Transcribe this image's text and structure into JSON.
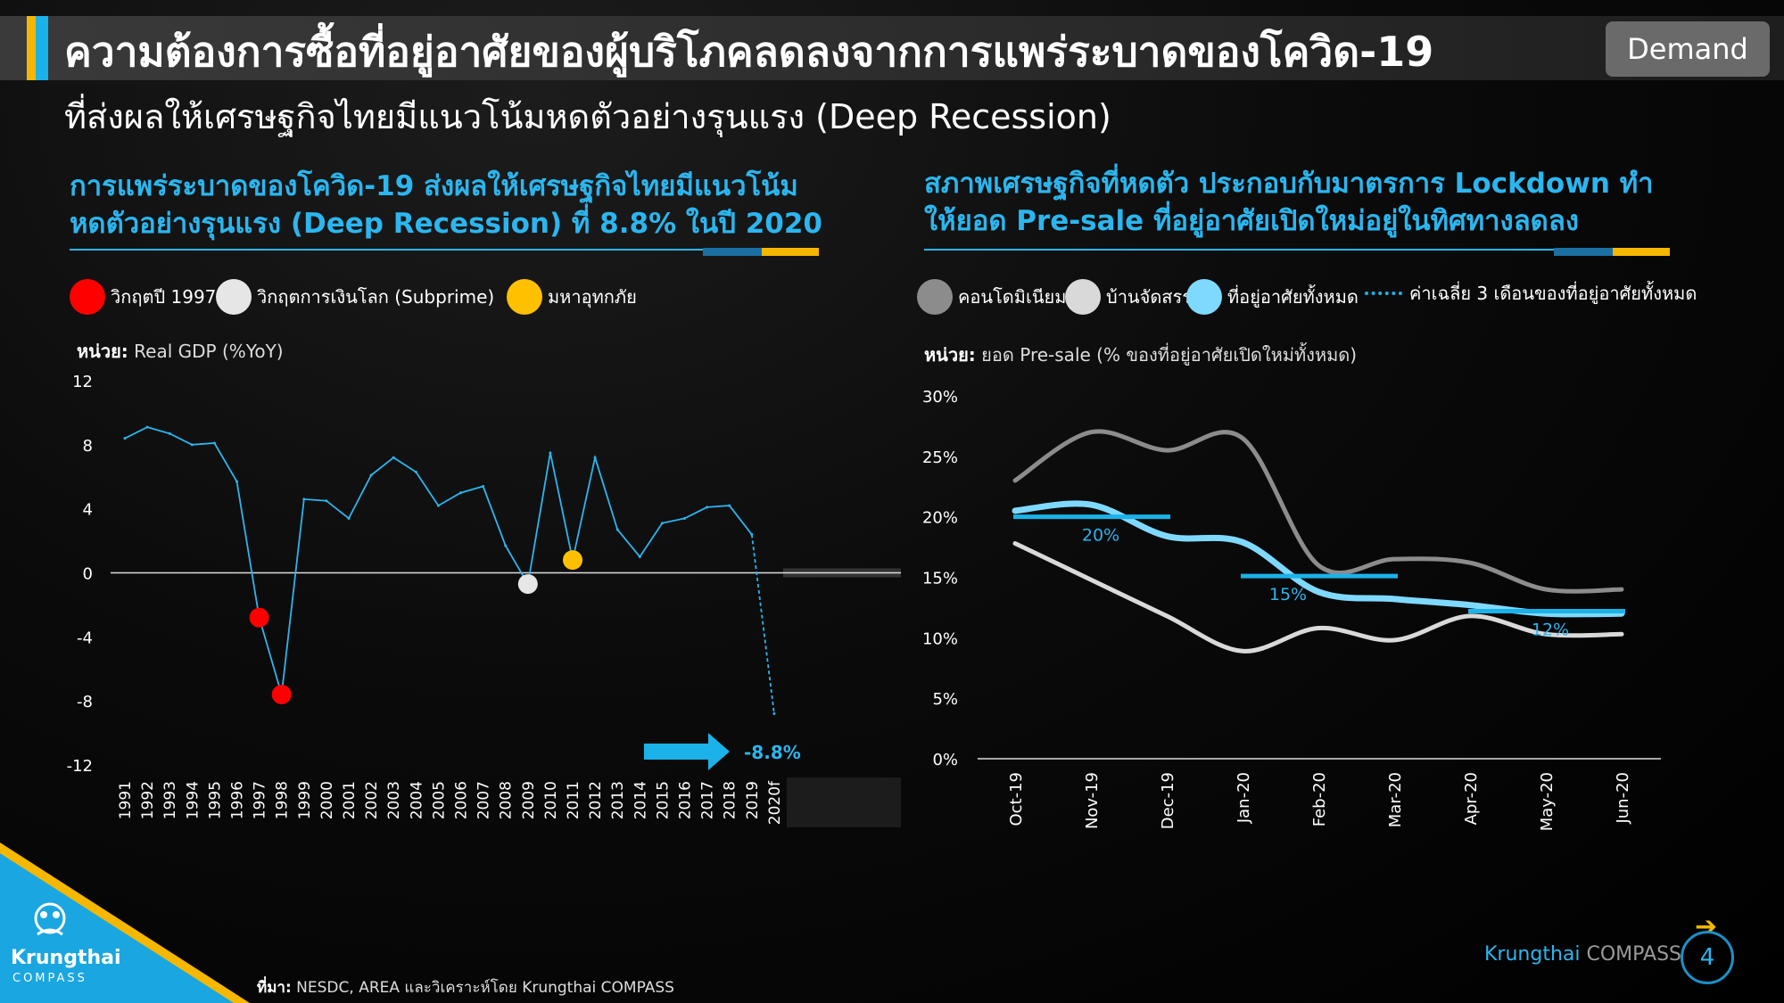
{
  "header": {
    "title": "ความต้องการซื้อที่อยู่อาศัยของผู้บริโภคลดลงจากการแพร่ระบาดของโควิด-19",
    "subtitle": "ที่ส่งผลให้เศรษฐกิจไทยมีแนวโน้มหดตัวอย่างรุนแรง (Deep Recession)",
    "badge": "Demand"
  },
  "left_panel": {
    "title_line1": "การแพร่ระบาดของโควิด-19 ส่งผลให้เศรษฐกิจไทยมีแนวโน้ม",
    "title_line2": "หดตัวอย่างรุนแรง (Deep Recession) ที่ 8.8% ในปี 2020",
    "legend": [
      {
        "label": "วิกฤตปี 1997",
        "color": "#ff0000"
      },
      {
        "label": "วิกฤตการเงินโลก (Subprime)",
        "color": "#e6e6e6"
      },
      {
        "label": "มหาอุทกภัย",
        "color": "#ffc000"
      }
    ],
    "unit_prefix": "หน่วย:",
    "unit_text": "Real GDP (%YoY)"
  },
  "right_panel": {
    "title_line1": "สภาพเศรษฐกิจที่หดตัว ประกอบกับมาตรการ Lockdown ทำ",
    "title_line2": "ให้ยอด Pre-sale ที่อยู่อาศัยเปิดใหม่อยู่ในทิศทางลดลง",
    "legend": [
      {
        "label": "คอนโดมิเนียม",
        "color": "#8c8c8c"
      },
      {
        "label": "บ้านจัดสรร",
        "color": "#d9d9d9"
      },
      {
        "label": "ที่อยู่อาศัยทั้งหมด",
        "color": "#7fd9ff"
      },
      {
        "label": "ค่าเฉลี่ย 3 เดือนของที่อยู่อาศัยทั้งหมด",
        "color": "#1ab2e8"
      }
    ],
    "unit_prefix": "หน่วย:",
    "unit_text": "ยอด Pre-sale (% ของที่อยู่อาศัยเปิดใหม่ทั้งหมด)"
  },
  "chart_data": [
    {
      "type": "line",
      "title": "Real GDP (%YoY)",
      "ylabel": "Real GDP (%YoY)",
      "ylim": [
        -12,
        12
      ],
      "yticks": [
        12,
        8,
        4,
        0,
        -4,
        -8,
        -12
      ],
      "categories": [
        "1991",
        "1992",
        "1993",
        "1994",
        "1995",
        "1996",
        "1997",
        "1998",
        "1999",
        "2000",
        "2001",
        "2002",
        "2003",
        "2004",
        "2005",
        "2006",
        "2007",
        "2008",
        "2009",
        "2010",
        "2011",
        "2012",
        "2013",
        "2014",
        "2015",
        "2016",
        "2017",
        "2018",
        "2019",
        "2020f"
      ],
      "series": [
        {
          "name": "Real GDP",
          "color": "#2bb6ef",
          "values": [
            8.4,
            9.1,
            8.7,
            8.0,
            8.1,
            5.7,
            -2.8,
            -7.6,
            4.6,
            4.5,
            3.4,
            6.1,
            7.2,
            6.3,
            4.2,
            5.0,
            5.4,
            1.7,
            -0.7,
            7.5,
            0.8,
            7.2,
            2.7,
            1.0,
            3.1,
            3.4,
            4.1,
            4.2,
            2.4,
            -8.8
          ]
        }
      ],
      "markers": [
        {
          "category": "1997",
          "value": -2.8,
          "label": "วิกฤตปี 1997",
          "color": "#ff0000"
        },
        {
          "category": "1998",
          "value": -7.6,
          "label": "วิกฤตปี 1997",
          "color": "#ff0000"
        },
        {
          "category": "2009",
          "value": -0.7,
          "label": "วิกฤตการเงินโลก (Subprime)",
          "color": "#e6e6e6"
        },
        {
          "category": "2011",
          "value": 0.8,
          "label": "มหาอุทกภัย",
          "color": "#ffc000"
        }
      ],
      "annotation": "-8.8%"
    },
    {
      "type": "line",
      "title": "ยอด Pre-sale",
      "ylabel": "ยอด Pre-sale (% ของที่อยู่อาศัยเปิดใหม่ทั้งหมด)",
      "ylim": [
        0,
        30
      ],
      "yticks": [
        "0%",
        "5%",
        "10%",
        "15%",
        "20%",
        "25%",
        "30%"
      ],
      "categories": [
        "Oct-19",
        "Nov-19",
        "Dec-19",
        "Jan-20",
        "Feb-20",
        "Mar-20",
        "Apr-20",
        "May-20",
        "Jun-20"
      ],
      "series": [
        {
          "name": "คอนโดมิเนียม",
          "color": "#8c8c8c",
          "values": [
            23.0,
            27.0,
            25.5,
            26.5,
            16.0,
            16.5,
            16.2,
            14.0,
            14.0
          ]
        },
        {
          "name": "บ้านจัดสรร",
          "color": "#d9d9d9",
          "values": [
            17.8,
            14.8,
            11.8,
            8.9,
            10.8,
            9.8,
            11.8,
            10.3,
            10.3
          ]
        },
        {
          "name": "ที่อยู่อาศัยทั้งหมด",
          "color": "#7fd9ff",
          "values": [
            20.5,
            21.0,
            18.4,
            17.9,
            13.8,
            13.2,
            12.7,
            12.0,
            12.0
          ]
        }
      ],
      "averages": [
        {
          "label": "20%",
          "value": 20.0,
          "from": "Oct-19",
          "to": "Dec-19"
        },
        {
          "label": "15%",
          "value": 15.1,
          "from": "Jan-20",
          "to": "Mar-20"
        },
        {
          "label": "12%",
          "value": 12.2,
          "from": "Apr-20",
          "to": "Jun-20"
        }
      ]
    }
  ],
  "footer": {
    "source_prefix": "ที่มา:",
    "source_text": "NESDC, AREA และวิเคราะห์โดย Krungthai COMPASS",
    "brand_k": "Krungthai",
    "brand_c": "COMPASS",
    "page_number": "4",
    "logo_name": "Krungthai",
    "logo_sub": "COMPASS"
  }
}
